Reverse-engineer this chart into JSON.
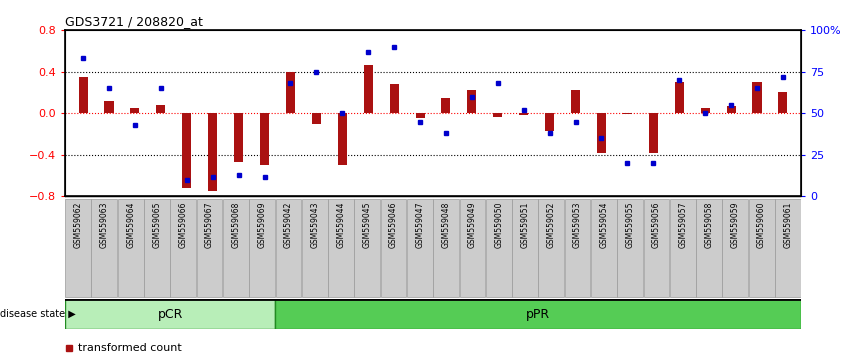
{
  "title": "GDS3721 / 208820_at",
  "samples": [
    "GSM559062",
    "GSM559063",
    "GSM559064",
    "GSM559065",
    "GSM559066",
    "GSM559067",
    "GSM559068",
    "GSM559069",
    "GSM559042",
    "GSM559043",
    "GSM559044",
    "GSM559045",
    "GSM559046",
    "GSM559047",
    "GSM559048",
    "GSM559049",
    "GSM559050",
    "GSM559051",
    "GSM559052",
    "GSM559053",
    "GSM559054",
    "GSM559055",
    "GSM559056",
    "GSM559057",
    "GSM559058",
    "GSM559059",
    "GSM559060",
    "GSM559061"
  ],
  "transformed_count": [
    0.35,
    0.12,
    0.05,
    0.08,
    -0.72,
    -0.75,
    -0.47,
    -0.5,
    0.4,
    -0.1,
    -0.5,
    0.46,
    0.28,
    -0.05,
    0.15,
    0.22,
    -0.04,
    -0.02,
    -0.17,
    0.22,
    -0.38,
    -0.01,
    -0.38,
    0.3,
    0.05,
    0.07,
    0.3,
    0.2
  ],
  "percentile_rank": [
    83,
    65,
    43,
    65,
    10,
    12,
    13,
    12,
    68,
    75,
    50,
    87,
    90,
    45,
    38,
    60,
    68,
    52,
    38,
    45,
    35,
    20,
    20,
    70,
    50,
    55,
    65,
    72
  ],
  "pcr_count": 8,
  "bar_color": "#AA1111",
  "dot_color": "#0000CC",
  "pcr_color": "#B8EEB8",
  "ppr_color": "#55CC55",
  "group_border_color": "#228B22",
  "ylim_left": [
    -0.8,
    0.8
  ],
  "ylim_right": [
    0,
    100
  ],
  "yticks_left": [
    -0.8,
    -0.4,
    0.0,
    0.4,
    0.8
  ],
  "yticks_right": [
    0,
    25,
    50,
    75,
    100
  ],
  "ytick_labels_right": [
    "0",
    "25",
    "50",
    "75",
    "100%"
  ],
  "bar_width": 0.35,
  "background_color": "#ffffff",
  "tick_bg_color": "#CCCCCC",
  "tick_border_color": "#999999"
}
